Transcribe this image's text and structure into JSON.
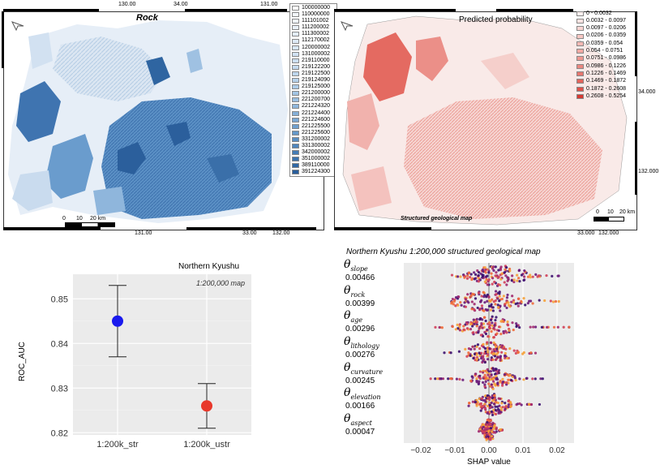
{
  "map_left": {
    "title": "Rock",
    "top_ticks": [
      "130.00",
      "34.00",
      "131.00"
    ],
    "bottom_ticks": [
      "131.00",
      "33.00",
      "132.00"
    ],
    "scale_labels": [
      "0",
      "10",
      "20 km"
    ],
    "legend": [
      {
        "code": "100000000",
        "color": "#ffffff"
      },
      {
        "code": "110000000",
        "color": "#f3f7fc"
      },
      {
        "code": "111101002",
        "color": "#eef4fb"
      },
      {
        "code": "111200002",
        "color": "#e9f1fa"
      },
      {
        "code": "111300002",
        "color": "#e3edf8"
      },
      {
        "code": "112170002",
        "color": "#dde9f6"
      },
      {
        "code": "120000002",
        "color": "#d7e6f4"
      },
      {
        "code": "131000002",
        "color": "#d1e2f3"
      },
      {
        "code": "219110000",
        "color": "#cbdef1"
      },
      {
        "code": "219122200",
        "color": "#c4daef"
      },
      {
        "code": "219122500",
        "color": "#bdd6ed"
      },
      {
        "code": "219124090",
        "color": "#b5d1ea"
      },
      {
        "code": "219125000",
        "color": "#accbe7"
      },
      {
        "code": "221200000",
        "color": "#a3c5e4"
      },
      {
        "code": "221200700",
        "color": "#99bee0"
      },
      {
        "code": "221224320",
        "color": "#8fb7dc"
      },
      {
        "code": "221224400",
        "color": "#85b0d8"
      },
      {
        "code": "221224600",
        "color": "#7aa8d3"
      },
      {
        "code": "221225500",
        "color": "#6fa0ce"
      },
      {
        "code": "221225600",
        "color": "#6498c9"
      },
      {
        "code": "331200002",
        "color": "#598fc3"
      },
      {
        "code": "331300002",
        "color": "#4f86bd"
      },
      {
        "code": "342000002",
        "color": "#457db6"
      },
      {
        "code": "351000002",
        "color": "#3b73ae"
      },
      {
        "code": "389110000",
        "color": "#3168a5"
      },
      {
        "code": "391224300",
        "color": "#285d9b"
      }
    ]
  },
  "map_right": {
    "title": "Predicted probability",
    "caption": "Structured geological map",
    "right_ticks": [
      "34.000",
      "132.000"
    ],
    "bottom_ticks": [
      "33.000",
      "132.000"
    ],
    "scale_labels": [
      "0",
      "10",
      "20 km"
    ],
    "legend": [
      {
        "range": "0 - 0.0032",
        "color": "#fdf0ef"
      },
      {
        "range": "0.0032 - 0.0097",
        "color": "#fbe3e1"
      },
      {
        "range": "0.0097 - 0.0206",
        "color": "#f9d6d3"
      },
      {
        "range": "0.0206 - 0.0359",
        "color": "#f7c7c3"
      },
      {
        "range": "0.0359 - 0.054",
        "color": "#f4b8b3"
      },
      {
        "range": "0.054 - 0.0751",
        "color": "#f1a8a2"
      },
      {
        "range": "0.0751 - 0.0986",
        "color": "#ee9891"
      },
      {
        "range": "0.0986 - 0.1226",
        "color": "#ea8780"
      },
      {
        "range": "0.1226 - 0.1469",
        "color": "#e6766e"
      },
      {
        "range": "0.1469 - 0.1872",
        "color": "#e2645c"
      },
      {
        "range": "0.1872 - 0.2608",
        "color": "#dd514a"
      },
      {
        "range": "0.2608 - 0.5254",
        "color": "#d63a33"
      }
    ]
  },
  "chart_data": [
    {
      "type": "scatter",
      "title": "Northern Kyushu",
      "annotation": "1:200,000 map",
      "ylabel": "ROC_AUC",
      "categories": [
        "1:200k_str",
        "1:200k_ustr"
      ],
      "points": [
        {
          "category": "1:200k_str",
          "y": 0.845,
          "low": 0.837,
          "high": 0.853,
          "color": "#1a1aee"
        },
        {
          "category": "1:200k_ustr",
          "y": 0.826,
          "low": 0.821,
          "high": 0.831,
          "color": "#e8382b"
        }
      ],
      "ylim": [
        0.8195,
        0.8555
      ],
      "yticks": [
        "0.82",
        "0.83",
        "0.84",
        "0.85"
      ],
      "grid": true
    },
    {
      "type": "scatter",
      "title": "Northern Kyushu 1:200,000 structured geological map",
      "xlabel": "SHAP value",
      "xlim": [
        -0.025,
        0.025
      ],
      "xticks": [
        "−0.02",
        "−0.01",
        "0.00",
        "0.01",
        "0.02"
      ],
      "features": [
        {
          "symbol": "θ",
          "sub": "slope",
          "importance": "0.00466",
          "min": -0.011,
          "max": 0.021,
          "center": 0.003,
          "width": 0.009
        },
        {
          "symbol": "θ",
          "sub": "rock",
          "importance": "0.00399",
          "min": -0.011,
          "max": 0.021,
          "center": 0.0,
          "width": 0.011
        },
        {
          "symbol": "θ",
          "sub": "age",
          "importance": "0.00296",
          "min": -0.016,
          "max": 0.024,
          "center": 0.0,
          "width": 0.008
        },
        {
          "symbol": "θ",
          "sub": "lithology",
          "importance": "0.00276",
          "min": -0.014,
          "max": 0.014,
          "center": 0.0,
          "width": 0.007
        },
        {
          "symbol": "θ",
          "sub": "curvature",
          "importance": "0.00245",
          "min": -0.018,
          "max": 0.016,
          "center": 0.001,
          "width": 0.006
        },
        {
          "symbol": "θ",
          "sub": "elevation",
          "importance": "0.00166",
          "min": -0.006,
          "max": 0.015,
          "center": 0.001,
          "width": 0.005
        },
        {
          "symbol": "θ",
          "sub": "aspect",
          "importance": "0.00047",
          "min": -0.003,
          "max": 0.004,
          "center": 0.0,
          "width": 0.002
        }
      ]
    }
  ]
}
